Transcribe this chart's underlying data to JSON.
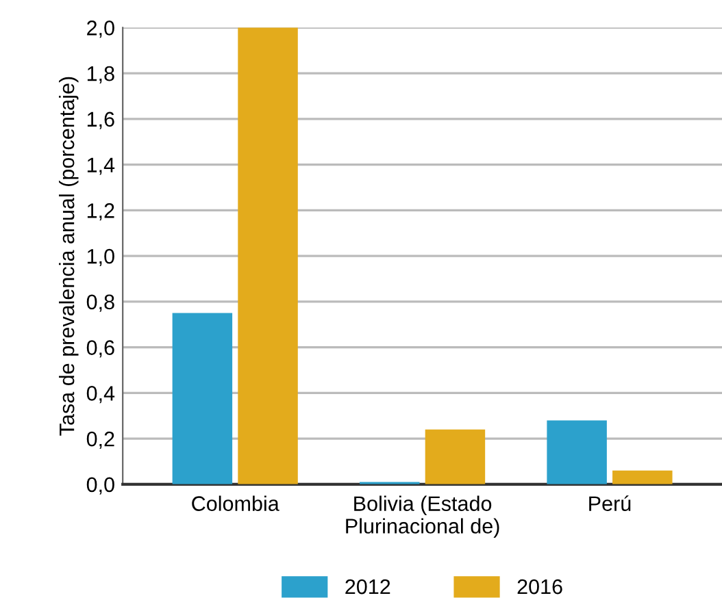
{
  "chart_data": {
    "type": "bar",
    "ylabel": "Tasa de prevalencia anual (porcentaje)",
    "categories": [
      "Colombia",
      "Bolivia (Estado\nPlurinacional de)",
      "Perú"
    ],
    "series": [
      {
        "name": "2012",
        "color": "#2ca1cc",
        "values": [
          0.75,
          0.01,
          0.28
        ]
      },
      {
        "name": "2016",
        "color": "#e3ab1c",
        "values": [
          2.0,
          0.24,
          0.06
        ]
      }
    ],
    "ylim": [
      0,
      2.0
    ],
    "yticks": [
      {
        "value": 0,
        "label": "0,0"
      },
      {
        "value": 0.2,
        "label": "0,2"
      },
      {
        "value": 0.4,
        "label": "0,4"
      },
      {
        "value": 0.6,
        "label": "0,6"
      },
      {
        "value": 0.8,
        "label": "0,8"
      },
      {
        "value": 1.0,
        "label": "1,0"
      },
      {
        "value": 1.2,
        "label": "1,2"
      },
      {
        "value": 1.4,
        "label": "1,4"
      },
      {
        "value": 1.6,
        "label": "1,6"
      },
      {
        "value": 1.8,
        "label": "1,8"
      },
      {
        "value": 2.0,
        "label": "2,0"
      }
    ],
    "grid": "y",
    "legend": "bottom"
  }
}
